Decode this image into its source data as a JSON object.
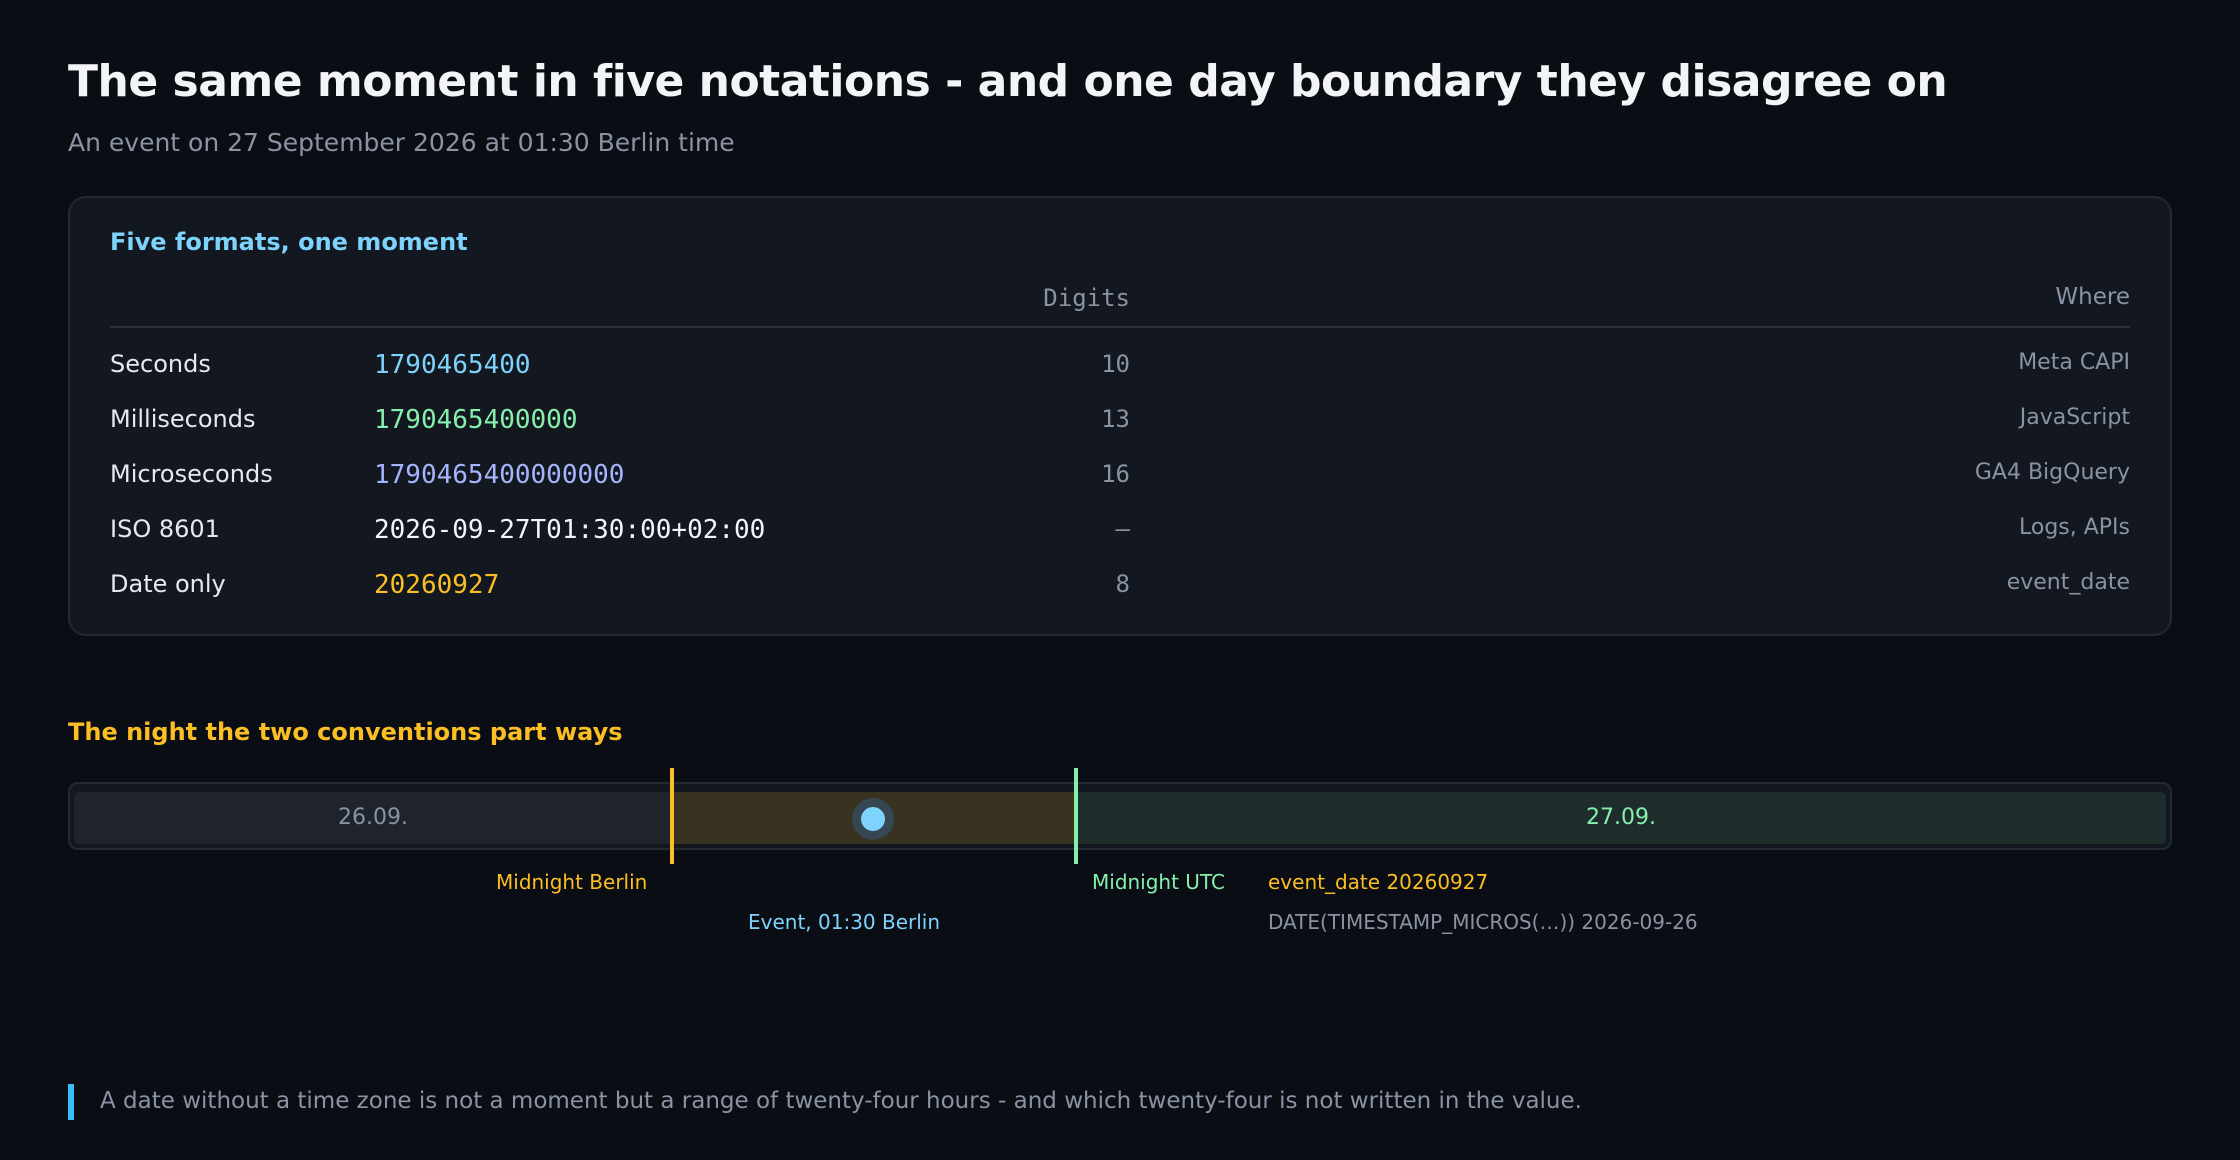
{
  "header": {
    "title": "The same moment in five notations - and one day boundary they disagree on",
    "subtitle": "An event on 27 September 2026 at 01:30 Berlin time"
  },
  "formats_card": {
    "title": "Five formats, one moment",
    "columns": {
      "digits": "Digits",
      "where": "Where"
    },
    "rows": [
      {
        "label": "Seconds",
        "value": "1790465400",
        "digits": "10",
        "where": "Meta CAPI",
        "color": "#7dd3fc"
      },
      {
        "label": "Milliseconds",
        "value": "1790465400000",
        "digits": "13",
        "where": "JavaScript",
        "color": "#86efac"
      },
      {
        "label": "Microseconds",
        "value": "1790465400000000",
        "digits": "16",
        "where": "GA4 BigQuery",
        "color": "#a5b4fc"
      },
      {
        "label": "ISO 8601",
        "value": "2026-09-27T01:30:00+02:00",
        "digits": "–",
        "where": "Logs, APIs",
        "color": "#f2f4f8"
      },
      {
        "label": "Date only",
        "value": "20260927",
        "digits": "8",
        "where": "event_date",
        "color": "#fbbf24"
      }
    ]
  },
  "timeline": {
    "title": "The night the two conventions part ways",
    "prev_day": "26.09.",
    "next_day": "27.09.",
    "midnight_berlin": "Midnight Berlin",
    "midnight_utc": "Midnight UTC",
    "event_label": "Event, 01:30 Berlin",
    "event_date_label": "event_date 20260927",
    "bigquery_date_label": "DATE(TIMESTAMP_MICROS(…)) 2026-09-26",
    "colors": {
      "berlin": "#fbbf24",
      "utc": "#86efac",
      "event": "#7dd3fc",
      "prev_day_text": "#8a93a3",
      "next_day_text": "#86efac"
    }
  },
  "footer": {
    "quote": "A date without a time zone is not a moment but a range of twenty-four hours - and which twenty-four is not written in the value."
  }
}
